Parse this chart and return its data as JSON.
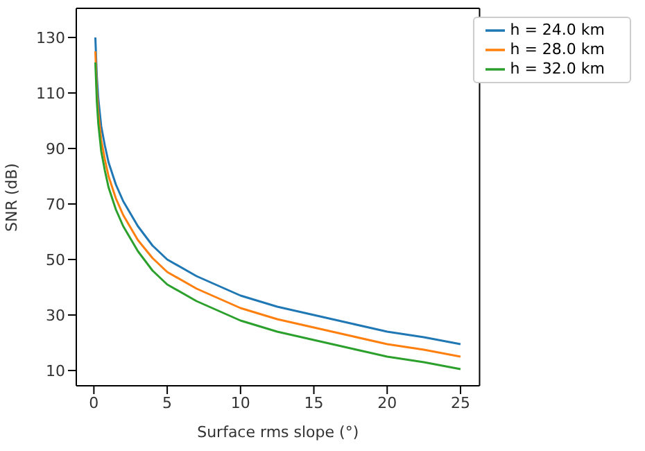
{
  "chart_data": {
    "type": "line",
    "xlabel": "Surface rms slope (°)",
    "ylabel": "SNR (dB)",
    "xlim": [
      -1.2,
      26.3
    ],
    "ylim": [
      4.5,
      140.5
    ],
    "xticks": [
      0,
      5,
      10,
      15,
      20,
      25
    ],
    "yticks": [
      10,
      30,
      50,
      70,
      90,
      110,
      130
    ],
    "legend": "top right",
    "marker": "none",
    "line_style": "solid",
    "x": [
      0.1,
      0.2,
      0.3,
      0.5,
      0.75,
      1,
      1.5,
      2,
      3,
      4,
      5,
      7,
      10,
      12.5,
      15,
      17.5,
      20,
      22.5,
      25
    ],
    "series": [
      {
        "name": "h = 24.0 km",
        "color": "#1f77b4",
        "values": [
          130,
          116,
          108,
          98,
          91,
          85,
          77,
          71,
          62,
          55,
          50,
          44,
          37,
          33,
          30,
          27,
          24,
          22,
          19.5
        ]
      },
      {
        "name": "h = 28.0 km",
        "color": "#ff7f0e",
        "values": [
          125,
          111,
          103,
          93,
          86,
          80,
          72,
          66,
          57,
          50.5,
          45.5,
          39.5,
          32.5,
          28.5,
          25.5,
          22.5,
          19.5,
          17.5,
          15
        ]
      },
      {
        "name": "h = 32.0 km",
        "color": "#2ca02c",
        "values": [
          121,
          107,
          99,
          89,
          82,
          76,
          68,
          62,
          53,
          46,
          41,
          35,
          28,
          24,
          21,
          18,
          15,
          13,
          10.5
        ]
      }
    ]
  }
}
